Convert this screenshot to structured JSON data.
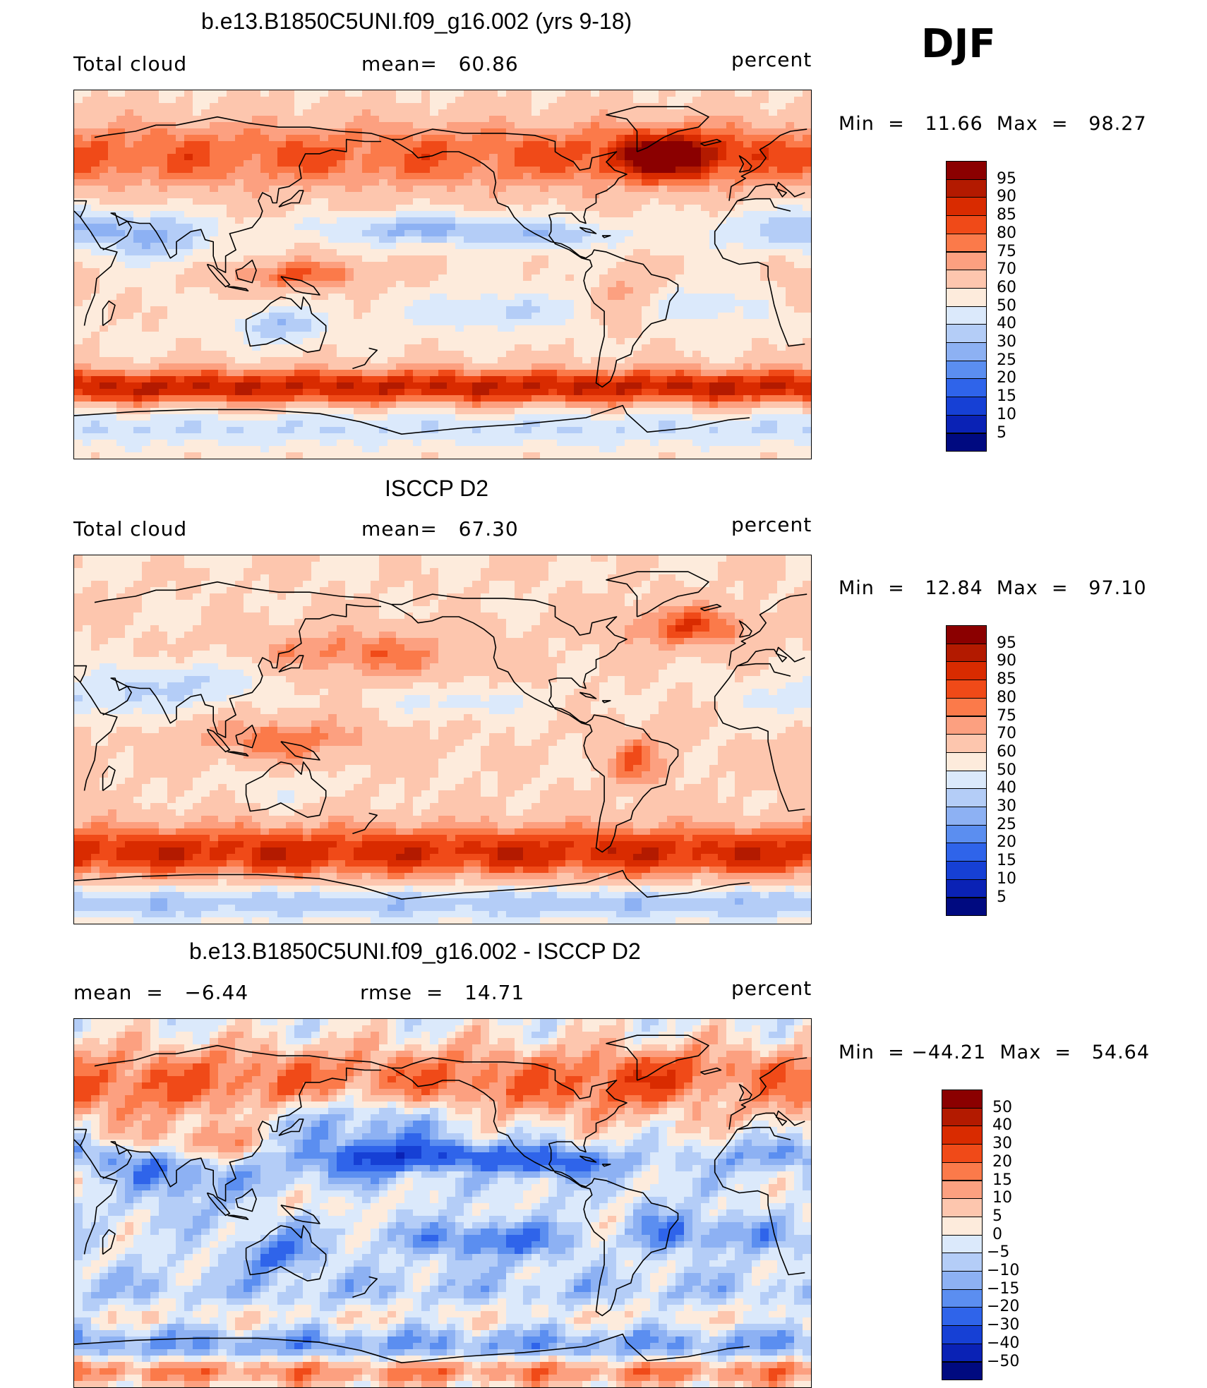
{
  "season": "DJF",
  "panels": [
    {
      "title": "b.e13.B1850C5UNI.f09_g16.002 (yrs 9-18)",
      "left_label": "Total cloud",
      "mid_label": "mean=   60.86",
      "right_label": "percent",
      "minmax": "Min  =   11.66  Max  =   98.27",
      "field": "model",
      "colorbar": {
        "ticks": [
          "95",
          "90",
          "85",
          "80",
          "75",
          "70",
          "60",
          "50",
          "40",
          "30",
          "25",
          "20",
          "15",
          "10",
          "5"
        ],
        "colors": [
          "#8b0000",
          "#b31a00",
          "#d92b00",
          "#f04a18",
          "#fb7a4a",
          "#fca080",
          "#fdc6ae",
          "#fdebdc",
          "#dbe9fb",
          "#b4cdf7",
          "#8db1f3",
          "#5b8ef0",
          "#2f64ea",
          "#1640d5",
          "#0a22b5",
          "#000a80"
        ]
      }
    },
    {
      "title": "ISCCP D2",
      "left_label": "Total cloud",
      "mid_label": "mean=   67.30",
      "right_label": "percent",
      "minmax": "Min  =   12.84  Max  =   97.10",
      "field": "obs",
      "colorbar": {
        "ticks": [
          "95",
          "90",
          "85",
          "80",
          "75",
          "70",
          "60",
          "50",
          "40",
          "30",
          "25",
          "20",
          "15",
          "10",
          "5"
        ],
        "colors": [
          "#8b0000",
          "#b31a00",
          "#d92b00",
          "#f04a18",
          "#fb7a4a",
          "#fca080",
          "#fdc6ae",
          "#fdebdc",
          "#dbe9fb",
          "#b4cdf7",
          "#8db1f3",
          "#5b8ef0",
          "#2f64ea",
          "#1640d5",
          "#0a22b5",
          "#000a80"
        ]
      }
    },
    {
      "title": "b.e13.B1850C5UNI.f09_g16.002 - ISCCP D2",
      "left_label": "mean  =   −6.44",
      "mid_label": "rmse  =   14.71",
      "right_label": "percent",
      "minmax": "Min  = −44.21  Max  =   54.64",
      "field": "diff",
      "colorbar": {
        "ticks": [
          "50",
          "40",
          "30",
          "20",
          "15",
          "10",
          "5",
          "0",
          "−5",
          "−10",
          "−15",
          "−20",
          "−30",
          "−40",
          "−50"
        ],
        "colors": [
          "#8b0000",
          "#b31a00",
          "#d92b00",
          "#f04a18",
          "#fb7a4a",
          "#fca080",
          "#fdc6ae",
          "#fdebdc",
          "#dbe9fb",
          "#b4cdf7",
          "#8db1f3",
          "#5b8ef0",
          "#2f64ea",
          "#1640d5",
          "#0a22b5",
          "#000a80"
        ]
      }
    }
  ]
}
